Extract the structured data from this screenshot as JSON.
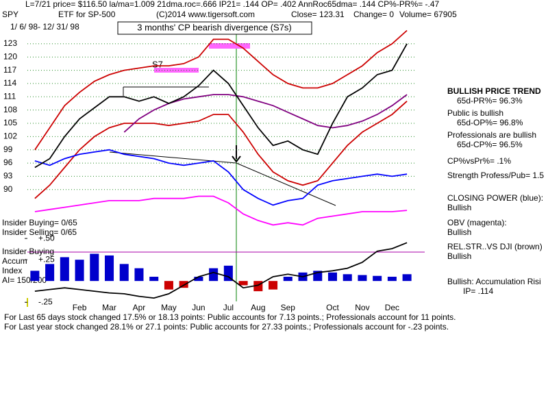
{
  "header": {
    "line1": "L=7/21  price= $116.50  la/ma=1.009 21dma.roc=.666 IP21= .144 OP= .402 AnnRoc65dma= .144 CP%-PR%= -.47",
    "symbol": "SPY",
    "description": "ETF for SP-500",
    "copyright": "(C)2014 www.tigersoft.com",
    "close": "Close= 123.31",
    "change": "Change= 0",
    "volume": "Volume= 67905",
    "date_range": "1/ 6/ 98- 12/ 31/ 98",
    "signal_box": "3 months' CP bearish divergence (S7s)"
  },
  "annotations": {
    "signal": "S7"
  },
  "insider": {
    "buying": "Insider Buying= 0/65",
    "selling": "Insider Selling= 0/65",
    "line_label": "Insider Buying",
    "accum": "Accum",
    "index": "Index",
    "ai": "AI= 150/200"
  },
  "right_panel": [
    "BULLISH PRICE TREND",
    "65d-PR%= 96.3%",
    "Public is bullish",
    "65d-OP%= 96.8%",
    "Professionals are bullish",
    "65d-CP%= 96.5%",
    "CP%vsPr%=  .1%",
    "Strength Profess/Pub= 1.5",
    "CLOSING POWER (blue):",
    "Bullish",
    "OBV (magenta):",
    "Bullish",
    "REL.STR..VS DJI (brown)",
    "Bullish",
    "Bullish: Accumulation Risi",
    "IP=  .114"
  ],
  "footer": [
    "For Last 65 days stock changed  17.5% or 18.13 points:  Public accounts for  7.13 points.;  Professionals account for  11 points.",
    "For Last year stock changed  28.1% or  27.1 points:  Public accounts for  27.33 points.;  Professionals account for -.23 points."
  ],
  "chart_data": [
    {
      "type": "line",
      "categories": [
        null,
        null,
        null,
        "Feb",
        null,
        "Mar",
        null,
        "Apr",
        null,
        "May",
        null,
        "Jun",
        null,
        "Jul",
        null,
        "Aug",
        null,
        "Sep",
        null,
        null,
        "Oct",
        null,
        "Nov",
        null,
        "Dec",
        null
      ],
      "series": [
        {
          "color": "#cc0000",
          "values": [
            99,
            104,
            109,
            112,
            114.5,
            116,
            117,
            117.5,
            118,
            118,
            118.5,
            120,
            124,
            124,
            122,
            119,
            116,
            114,
            113,
            113,
            114,
            116,
            118,
            121,
            123,
            126
          ]
        },
        {
          "color": "#cc0000",
          "values": [
            88,
            91,
            95,
            99,
            102,
            104,
            105,
            105,
            105,
            104.5,
            105,
            105.5,
            107,
            107,
            103,
            98,
            94,
            92,
            91,
            92,
            96,
            100,
            103,
            105,
            107,
            110
          ]
        },
        {
          "color": "#800080",
          "values": [
            null,
            null,
            null,
            null,
            null,
            null,
            103,
            106,
            108,
            109.5,
            110.5,
            111,
            111.5,
            111.5,
            111,
            110,
            109,
            107.5,
            106,
            104.5,
            104,
            104.5,
            105.5,
            107,
            109,
            111.5
          ]
        },
        {
          "color": "#ff00ff",
          "values": [
            85,
            85.5,
            86,
            86.5,
            87,
            87.5,
            87.5,
            87.5,
            88,
            88,
            88,
            88.5,
            88.5,
            87,
            84.5,
            83,
            82,
            82.5,
            82,
            83.5,
            84,
            84.5,
            85,
            85,
            85,
            85.3
          ]
        },
        {
          "color": "#0000ff",
          "values": [
            96.5,
            95.5,
            97,
            98,
            98.5,
            99,
            98,
            97.5,
            97,
            96,
            95.5,
            96,
            96.5,
            94,
            90,
            88,
            86.5,
            87.5,
            88,
            91,
            92,
            92.5,
            93,
            93.5,
            93,
            93.5
          ]
        },
        {
          "color": "#000000",
          "values": [
            95,
            97,
            102,
            106,
            108.5,
            111,
            111,
            110,
            111,
            109.5,
            111,
            113.5,
            117,
            114,
            109,
            104,
            100,
            101,
            99,
            98,
            105,
            111,
            113,
            116,
            117,
            123
          ]
        }
      ],
      "ylim": [
        80.2,
        126.7
      ],
      "yticks": [
        90,
        93,
        96,
        99,
        102,
        105,
        108,
        111,
        114,
        117,
        120,
        123
      ],
      "grid": true,
      "grid_color": "#228b22"
    },
    {
      "type": "bar",
      "series": [
        {
          "color": "#0000cc",
          "negative_color": "#cc0000",
          "values": [
            0.12,
            0.2,
            0.28,
            0.25,
            0.32,
            0.3,
            0.2,
            0.15,
            0.05,
            -0.1,
            -0.08,
            0.05,
            0.15,
            0.18,
            -0.05,
            -0.12,
            -0.1,
            0.05,
            0.1,
            0.12,
            0.1,
            0.08,
            0.07,
            0.06,
            0.05,
            0.08
          ]
        },
        {
          "type": "line",
          "color": "#000000",
          "values": [
            -0.12,
            -0.1,
            -0.08,
            -0.1,
            -0.12,
            -0.14,
            -0.15,
            -0.18,
            -0.2,
            -0.15,
            -0.05,
            0.05,
            0.1,
            0.05,
            -0.08,
            -0.05,
            0.05,
            0.08,
            0.05,
            0.1,
            0.12,
            0.15,
            0.22,
            0.35,
            0.38,
            0.45
          ]
        }
      ],
      "ylim": [
        -0.28,
        0.525
      ],
      "yticks": [
        {
          "value": 0.5,
          "label": "+.50"
        },
        {
          "value": 0.25,
          "label": "+.25"
        },
        {
          "value": -0.25,
          "label": "-.25"
        }
      ],
      "grid": false
    }
  ]
}
